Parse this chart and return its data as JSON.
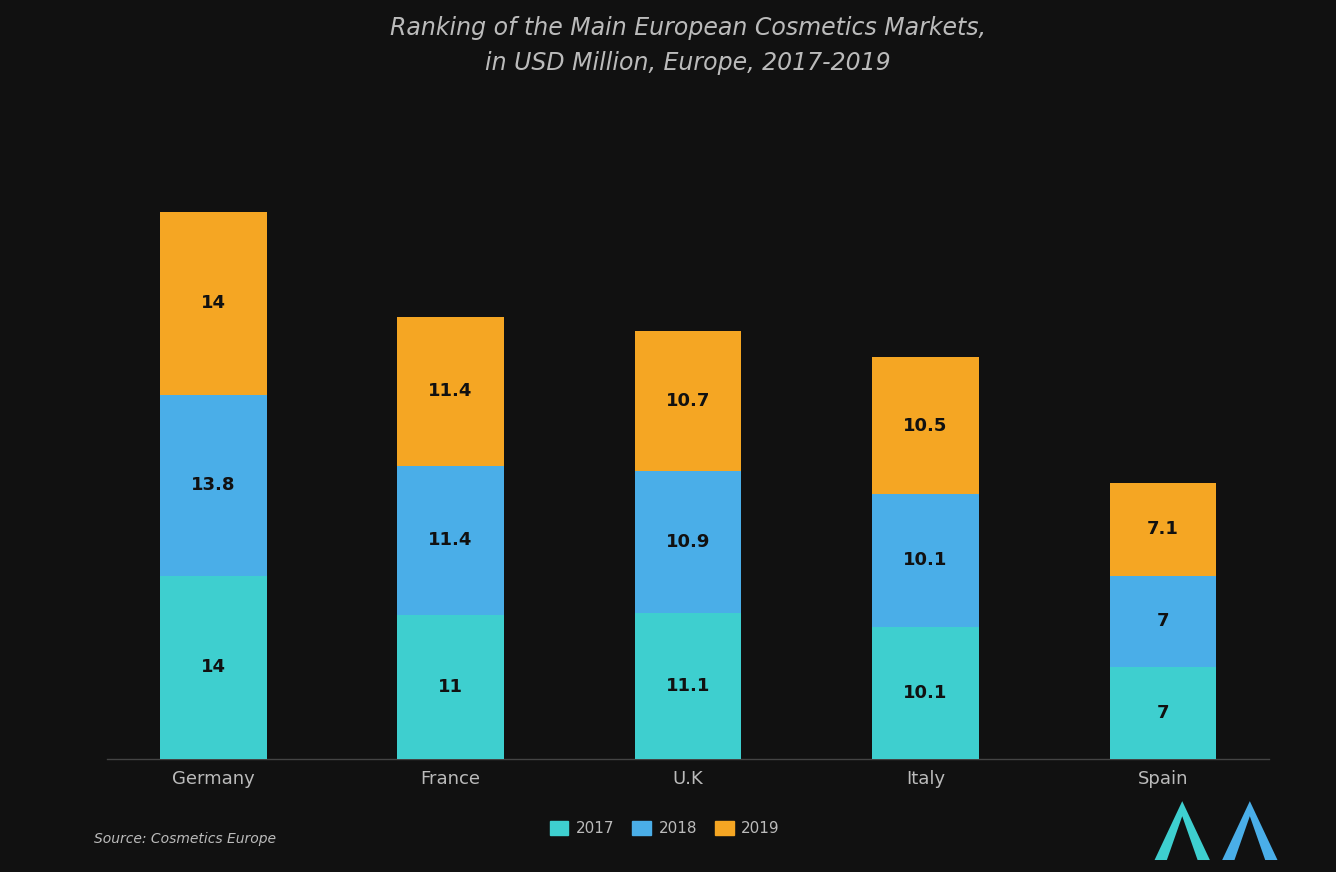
{
  "title_line1": "Ranking of the Main European Cosmetics Markets,",
  "title_line2": "in USD Million, Europe, 2017-2019",
  "categories": [
    "Germany",
    "France",
    "U.K",
    "Italy",
    "Spain"
  ],
  "segment1_values": [
    14.0,
    11.0,
    11.1,
    10.1,
    7.0
  ],
  "segment2_values": [
    13.8,
    11.4,
    10.9,
    10.1,
    7.0
  ],
  "segment3_values": [
    14.0,
    11.4,
    10.7,
    10.5,
    7.1
  ],
  "segment1_labels": [
    "14",
    "11",
    "11.1",
    "10.1",
    "7"
  ],
  "segment2_labels": [
    "13.8",
    "11.4",
    "10.9",
    "10.1",
    "7"
  ],
  "segment3_labels": [
    "14",
    "11.4",
    "10.7",
    "10.5",
    "7.1"
  ],
  "segment1_color": "#3ECFCF",
  "segment2_color": "#4AAEE8",
  "segment3_color": "#F5A623",
  "legend_labels": [
    "2017",
    "2018",
    "2019"
  ],
  "source_text": "Source: Cosmetics Europe",
  "background_color": "#111111",
  "text_color": "#bbbbbb",
  "bar_width": 0.45,
  "title_fontsize": 17,
  "label_fontsize": 13,
  "ylim": [
    0,
    50
  ]
}
